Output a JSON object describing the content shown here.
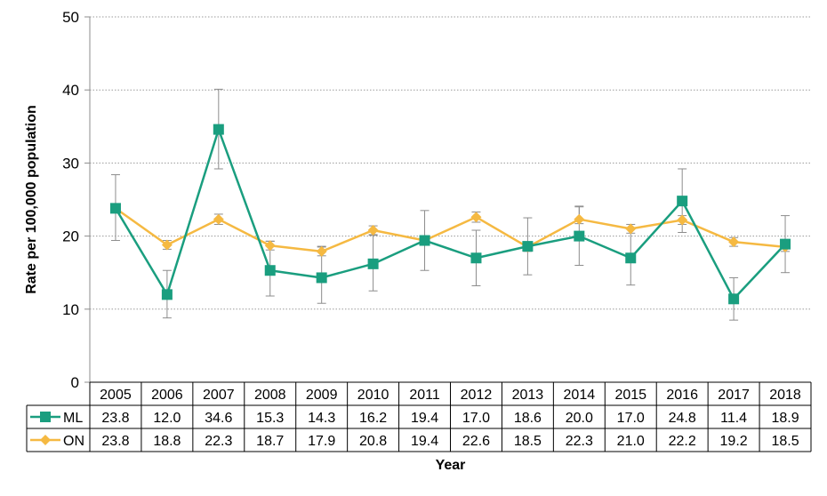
{
  "chart_data": {
    "type": "line",
    "title": "",
    "xlabel": "Year",
    "ylabel": "Rate per 100,000 population",
    "ylim": [
      0,
      50
    ],
    "yticks": [
      0,
      10,
      20,
      30,
      40,
      50
    ],
    "grid": "horizontal dotted",
    "legend": "data-table",
    "categories": [
      "2005",
      "2006",
      "2007",
      "2008",
      "2009",
      "2010",
      "2011",
      "2012",
      "2013",
      "2014",
      "2015",
      "2016",
      "2017",
      "2018"
    ],
    "series": [
      {
        "name": "ML",
        "color": "#1a9e7f",
        "marker": "square",
        "values": [
          23.8,
          12.0,
          34.6,
          15.3,
          14.3,
          16.2,
          19.4,
          17.0,
          18.6,
          20.0,
          17.0,
          24.8,
          11.4,
          18.9
        ],
        "labels": [
          "23.8",
          "12.0",
          "34.6",
          "15.3",
          "14.3",
          "16.2",
          "19.4",
          "17.0",
          "18.6",
          "20.0",
          "17.0",
          "24.8",
          "11.4",
          "18.9"
        ],
        "error_low": [
          19.4,
          8.8,
          29.2,
          11.8,
          10.8,
          12.5,
          15.3,
          13.2,
          14.7,
          16.0,
          13.3,
          20.5,
          8.5,
          15.0
        ],
        "error_high": [
          28.4,
          15.3,
          40.1,
          19.3,
          18.6,
          20.1,
          23.5,
          20.8,
          22.5,
          24.1,
          21.0,
          29.2,
          14.3,
          22.8
        ]
      },
      {
        "name": "ON",
        "color": "#f5b942",
        "marker": "diamond",
        "values": [
          23.8,
          18.8,
          22.3,
          18.7,
          17.9,
          20.8,
          19.4,
          22.6,
          18.5,
          22.3,
          21.0,
          22.2,
          19.2,
          18.5
        ],
        "labels": [
          "23.8",
          "18.8",
          "22.3",
          "18.7",
          "17.9",
          "20.8",
          "19.4",
          "22.6",
          "18.5",
          "22.3",
          "21.0",
          "22.2",
          "19.2",
          "18.5"
        ],
        "error_low": [
          23.2,
          18.2,
          21.6,
          18.1,
          17.3,
          20.2,
          18.8,
          21.9,
          17.9,
          21.7,
          20.4,
          21.6,
          18.6,
          17.9
        ],
        "error_high": [
          24.4,
          19.4,
          23.0,
          19.3,
          18.5,
          21.4,
          20.0,
          23.3,
          19.1,
          24.0,
          21.6,
          22.8,
          19.8,
          19.1
        ]
      }
    ]
  }
}
